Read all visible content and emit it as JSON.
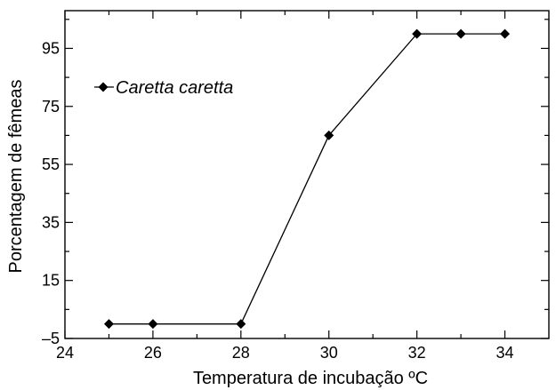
{
  "chart_data": {
    "type": "line",
    "xlabel": "Temperatura de incubação ºC",
    "ylabel": "Porcentagem de fêmeas",
    "xlim": [
      24,
      35
    ],
    "ylim": [
      -5,
      108
    ],
    "x_ticks_major": [
      24,
      26,
      28,
      30,
      32,
      34
    ],
    "x_ticks_minor": [
      25,
      27,
      29,
      31,
      33
    ],
    "y_ticks_major": [
      -5,
      15,
      35,
      55,
      75,
      95
    ],
    "y_tick_labels": [
      "–5",
      "15",
      "35",
      "55",
      "75",
      "95"
    ],
    "y_ticks_minor": [
      5,
      25,
      45,
      65,
      85,
      105
    ],
    "grid": false,
    "legend_position": "top-left",
    "series": [
      {
        "name": "Caretta caretta",
        "marker": "diamond",
        "color": "#000000",
        "x": [
          25,
          26,
          28,
          30,
          32,
          33,
          34
        ],
        "y": [
          0,
          0,
          0,
          65,
          100,
          100,
          100
        ]
      }
    ]
  }
}
